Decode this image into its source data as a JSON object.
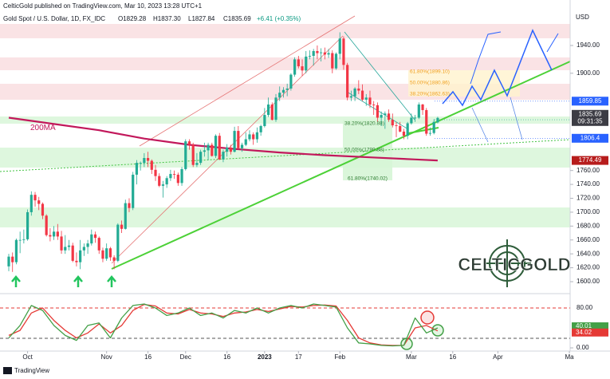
{
  "header": {
    "publisher": "CelticGold published on TradingView.com, Mar 10, 2023 13:28 UTC+1",
    "symbol": "Gold Spot / U.S. Dollar, 1D, FX_IDC",
    "open": "O1829.28",
    "high": "H1837.30",
    "low": "L1827.84",
    "close": "C1835.69",
    "change": "+6.41 (+0.35%)"
  },
  "chart_data": [
    {
      "type": "candlestick",
      "unit": "USD",
      "up_color": "#22ab94",
      "down_color": "#f23645",
      "candles": [
        [
          1622,
          1640,
          1615,
          1636
        ],
        [
          1636,
          1642,
          1614,
          1628
        ],
        [
          1628,
          1662,
          1625,
          1660
        ],
        [
          1660,
          1672,
          1641,
          1660
        ],
        [
          1660,
          1675,
          1655,
          1661
        ],
        [
          1661,
          1704,
          1659,
          1700
        ],
        [
          1700,
          1730,
          1695,
          1725
        ],
        [
          1725,
          1729,
          1708,
          1717
        ],
        [
          1717,
          1722,
          1703,
          1712
        ],
        [
          1712,
          1714,
          1690,
          1695
        ],
        [
          1695,
          1697,
          1665,
          1667
        ],
        [
          1667,
          1677,
          1658,
          1665
        ],
        [
          1665,
          1680,
          1660,
          1672
        ],
        [
          1672,
          1683,
          1660,
          1665
        ],
        [
          1665,
          1673,
          1640,
          1645
        ],
        [
          1645,
          1667,
          1640,
          1650
        ],
        [
          1650,
          1660,
          1645,
          1652
        ],
        [
          1652,
          1656,
          1628,
          1630
        ],
        [
          1630,
          1642,
          1622,
          1628
        ],
        [
          1628,
          1660,
          1618,
          1645
        ],
        [
          1645,
          1655,
          1637,
          1650
        ],
        [
          1650,
          1660,
          1640,
          1655
        ],
        [
          1655,
          1675,
          1652,
          1668
        ],
        [
          1668,
          1672,
          1656,
          1663
        ],
        [
          1663,
          1665,
          1640,
          1645
        ],
        [
          1645,
          1649,
          1628,
          1633
        ],
        [
          1633,
          1655,
          1630,
          1648
        ],
        [
          1648,
          1650,
          1630,
          1635
        ],
        [
          1635,
          1638,
          1618,
          1630
        ],
        [
          1630,
          1684,
          1628,
          1682
        ],
        [
          1682,
          1688,
          1670,
          1676
        ],
        [
          1676,
          1718,
          1675,
          1713
        ],
        [
          1713,
          1720,
          1700,
          1706
        ],
        [
          1706,
          1758,
          1703,
          1754
        ],
        [
          1754,
          1775,
          1740,
          1771
        ],
        [
          1771,
          1773,
          1760,
          1771
        ],
        [
          1771,
          1785,
          1765,
          1778
        ],
        [
          1778,
          1787,
          1765,
          1774
        ],
        [
          1774,
          1776,
          1755,
          1761
        ],
        [
          1761,
          1768,
          1745,
          1752
        ],
        [
          1752,
          1756,
          1736,
          1738
        ],
        [
          1738,
          1745,
          1721,
          1740
        ],
        [
          1740,
          1752,
          1735,
          1749
        ],
        [
          1749,
          1761,
          1745,
          1755
        ],
        [
          1755,
          1760,
          1748,
          1754
        ],
        [
          1754,
          1757,
          1738,
          1742
        ],
        [
          1742,
          1765,
          1738,
          1762
        ],
        [
          1762,
          1805,
          1760,
          1802
        ],
        [
          1802,
          1805,
          1790,
          1797
        ],
        [
          1797,
          1800,
          1765,
          1768
        ],
        [
          1768,
          1785,
          1765,
          1771
        ],
        [
          1771,
          1790,
          1768,
          1787
        ],
        [
          1787,
          1800,
          1780,
          1789
        ],
        [
          1789,
          1800,
          1775,
          1797
        ],
        [
          1797,
          1800,
          1780,
          1781
        ],
        [
          1781,
          1812,
          1778,
          1810
        ],
        [
          1810,
          1814,
          1775,
          1776
        ],
        [
          1776,
          1790,
          1772,
          1787
        ],
        [
          1787,
          1798,
          1780,
          1793
        ],
        [
          1793,
          1797,
          1783,
          1787
        ],
        [
          1787,
          1823,
          1786,
          1817
        ],
        [
          1817,
          1824,
          1790,
          1792
        ],
        [
          1792,
          1800,
          1787,
          1797
        ],
        [
          1797,
          1815,
          1795,
          1805
        ],
        [
          1805,
          1818,
          1802,
          1812
        ],
        [
          1812,
          1815,
          1797,
          1805
        ],
        [
          1805,
          1822,
          1800,
          1815
        ],
        [
          1815,
          1826,
          1810,
          1824
        ],
        [
          1824,
          1850,
          1822,
          1840
        ],
        [
          1840,
          1865,
          1837,
          1855
        ],
        [
          1855,
          1858,
          1832,
          1833
        ],
        [
          1833,
          1870,
          1830,
          1865
        ],
        [
          1865,
          1881,
          1860,
          1872
        ],
        [
          1872,
          1880,
          1865,
          1876
        ],
        [
          1876,
          1885,
          1867,
          1878
        ],
        [
          1878,
          1900,
          1875,
          1898
        ],
        [
          1898,
          1923,
          1895,
          1920
        ],
        [
          1920,
          1925,
          1907,
          1910
        ],
        [
          1910,
          1920,
          1896,
          1904
        ],
        [
          1904,
          1932,
          1900,
          1924
        ],
        [
          1924,
          1933,
          1920,
          1925
        ],
        [
          1925,
          1935,
          1911,
          1932
        ],
        [
          1932,
          1940,
          1920,
          1929
        ],
        [
          1929,
          1936,
          1917,
          1930
        ],
        [
          1930,
          1937,
          1920,
          1927
        ],
        [
          1927,
          1935,
          1922,
          1929
        ],
        [
          1929,
          1933,
          1900,
          1907
        ],
        [
          1907,
          1930,
          1905,
          1928
        ],
        [
          1928,
          1959,
          1920,
          1950
        ],
        [
          1950,
          1953,
          1905,
          1912
        ],
        [
          1912,
          1915,
          1861,
          1865
        ],
        [
          1865,
          1875,
          1860,
          1867
        ],
        [
          1867,
          1880,
          1860,
          1878
        ],
        [
          1878,
          1890,
          1870,
          1875
        ],
        [
          1875,
          1884,
          1860,
          1862
        ],
        [
          1862,
          1870,
          1853,
          1865
        ],
        [
          1865,
          1875,
          1850,
          1855
        ],
        [
          1855,
          1860,
          1840,
          1854
        ],
        [
          1854,
          1858,
          1830,
          1836
        ],
        [
          1836,
          1845,
          1824,
          1840
        ],
        [
          1840,
          1845,
          1820,
          1842
        ],
        [
          1842,
          1848,
          1830,
          1833
        ],
        [
          1833,
          1842,
          1822,
          1825
        ],
        [
          1825,
          1830,
          1808,
          1824
        ],
        [
          1824,
          1830,
          1815,
          1816
        ],
        [
          1816,
          1820,
          1805,
          1810
        ],
        [
          1810,
          1830,
          1805,
          1828
        ],
        [
          1828,
          1842,
          1826,
          1836
        ],
        [
          1836,
          1840,
          1830,
          1836
        ],
        [
          1836,
          1858,
          1834,
          1855
        ],
        [
          1855,
          1856,
          1840,
          1847
        ],
        [
          1847,
          1850,
          1810,
          1813
        ],
        [
          1813,
          1822,
          1810,
          1814
        ],
        [
          1814,
          1834,
          1812,
          1830
        ],
        [
          1829.28,
          1837.3,
          1827.84,
          1835.69
        ]
      ],
      "series": [
        {
          "name": "200MA",
          "color": "#c2185b",
          "x": [
            0,
            12,
            24,
            36,
            48,
            60,
            72,
            84,
            96,
            108,
            114
          ],
          "values": [
            1836,
            1827,
            1818,
            1806,
            1797,
            1791,
            1786,
            1782,
            1779,
            1776,
            1774.49
          ]
        }
      ],
      "levels": [
        {
          "value": 1859.85,
          "color": "#2962ff"
        },
        {
          "value": 1833.12,
          "color": "#22ab94"
        },
        {
          "value": 1806.4,
          "color": "#2962ff"
        }
      ],
      "countdown": "09:31:35",
      "fib_labels": [
        "61.80%(1899.10)",
        "50.00%(1880.86)",
        "38.20%(1862.63)",
        "38.20%(1820.88)",
        "50.00%(1799.88)",
        "61.80%(1740.02)"
      ],
      "xlim": [
        -2.33,
        149.2
      ],
      "ylim": [
        1580,
        2000
      ],
      "xticks": [
        {
          "value": 5,
          "label": "Oct"
        },
        {
          "value": 26,
          "label": "Nov"
        },
        {
          "value": 37,
          "label": "16"
        },
        {
          "value": 47,
          "label": "Dec"
        },
        {
          "value": 58,
          "label": "16"
        },
        {
          "value": 68,
          "label": "2023"
        },
        {
          "value": 77,
          "label": "17"
        },
        {
          "value": 88,
          "label": "Feb"
        },
        {
          "value": 107,
          "label": "Mar"
        },
        {
          "value": 118,
          "label": "16"
        },
        {
          "value": 130,
          "label": "Apr"
        },
        {
          "value": 149,
          "label": "Ma"
        }
      ],
      "yticks": [
        {
          "value": 1940,
          "label": "1940.00"
        },
        {
          "value": 1900,
          "label": "1900.00"
        },
        {
          "value": 1760,
          "label": "1760.00"
        },
        {
          "value": 1740,
          "label": "1740.00"
        },
        {
          "value": 1720,
          "label": "1720.00"
        },
        {
          "value": 1700,
          "label": "1700.00"
        },
        {
          "value": 1680,
          "label": "1680.00"
        },
        {
          "value": 1660,
          "label": "1660.00"
        },
        {
          "value": 1640,
          "label": "1640.00"
        },
        {
          "value": 1620,
          "label": "1620.00"
        },
        {
          "value": 1600,
          "label": "1600.00"
        }
      ]
    },
    {
      "type": "line",
      "x": [
        0,
        3,
        6,
        9,
        12,
        15,
        18,
        21,
        24,
        27,
        30,
        33,
        36,
        39,
        42,
        45,
        48,
        51,
        54,
        57,
        60,
        63,
        66,
        69,
        72,
        75,
        78,
        81,
        84,
        87,
        90,
        93,
        96,
        99,
        102,
        105,
        108,
        111,
        114
      ],
      "xlim": [
        -2.33,
        149.2
      ],
      "ylim": [
        0,
        100
      ],
      "yticks": [
        {
          "value": 80,
          "label": "80.00"
        },
        {
          "value": 0,
          "label": "0.00"
        }
      ],
      "series": [
        {
          "color": "#43a047",
          "values": [
            20,
            45,
            85,
            75,
            45,
            25,
            15,
            45,
            50,
            20,
            60,
            85,
            88,
            80,
            65,
            70,
            80,
            65,
            70,
            60,
            75,
            70,
            80,
            70,
            80,
            85,
            80,
            88,
            85,
            82,
            40,
            10,
            8,
            5,
            4,
            5,
            60,
            30,
            40.01
          ]
        },
        {
          "color": "#e53935",
          "values": [
            25,
            35,
            70,
            80,
            55,
            35,
            20,
            30,
            48,
            30,
            45,
            75,
            87,
            84,
            70,
            68,
            77,
            70,
            68,
            63,
            70,
            72,
            77,
            73,
            78,
            83,
            82,
            85,
            86,
            84,
            55,
            20,
            10,
            6,
            5,
            5,
            40,
            45,
            34.02
          ]
        }
      ]
    }
  ],
  "logo": "CELTICGOLD",
  "footer": "TradingView"
}
